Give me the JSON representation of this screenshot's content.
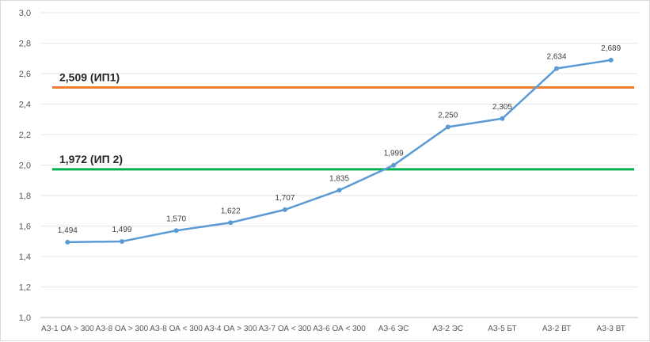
{
  "chart_data": {
    "type": "line",
    "categories": [
      "АЗ-1 ОА > 300",
      "АЗ-8 ОА > 300",
      "АЗ-8 ОА < 300",
      "АЗ-4 ОА > 300",
      "АЗ-7 ОА < 300",
      "АЗ-6 ОА < 300",
      "АЗ-6 ЭС",
      "АЗ-2 ЭС",
      "АЗ-5 БТ",
      "АЗ-2 ВТ",
      "АЗ-3 ВТ"
    ],
    "series": [
      {
        "values": [
          1.494,
          1.499,
          1.57,
          1.622,
          1.707,
          1.835,
          1.999,
          2.25,
          2.305,
          2.634,
          2.689
        ],
        "value_labels": [
          "1,494",
          "1,499",
          "1,570",
          "1,622",
          "1,707",
          "1,835",
          "1,999",
          "2,250",
          "2,305",
          "2,634",
          "2,689"
        ],
        "color": "#5b9bd5"
      }
    ],
    "reference_lines": [
      {
        "label": "2,509 (ИП1)",
        "value": 2.509,
        "color": "#ed7d31"
      },
      {
        "label": "1,972 (ИП 2)",
        "value": 1.972,
        "color": "#00b050"
      }
    ],
    "ylim": [
      1.0,
      3.0
    ],
    "yticks": [
      "1,0",
      "1,2",
      "1,4",
      "1,6",
      "1,8",
      "2,0",
      "2,2",
      "2,4",
      "2,6",
      "2,8",
      "3,0"
    ],
    "grid": true,
    "title": "",
    "xlabel": "",
    "ylabel": ""
  }
}
